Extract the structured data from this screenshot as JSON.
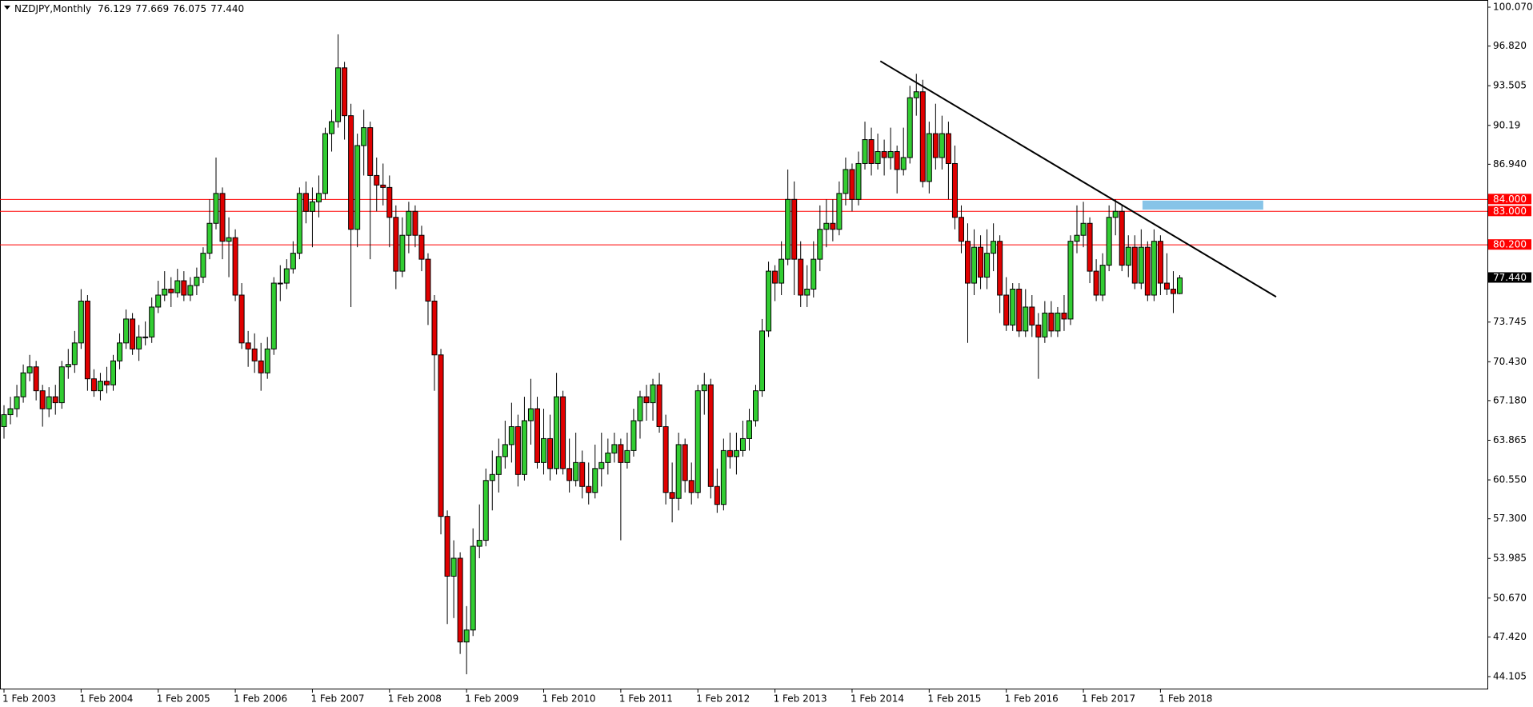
{
  "chart_data": {
    "type": "candlestick",
    "title": "NZDJPY,Monthly",
    "value_labels": {
      "open": "76.129",
      "high": "77.669",
      "low": "76.075",
      "close": "77.440"
    },
    "categories": [
      "1 Feb 2003",
      null,
      null,
      null,
      null,
      null,
      null,
      null,
      null,
      null,
      null,
      null,
      "1 Feb 2004",
      null,
      null,
      null,
      null,
      null,
      null,
      null,
      null,
      null,
      null,
      null,
      "1 Feb 2005",
      null,
      null,
      null,
      null,
      null,
      null,
      null,
      null,
      null,
      null,
      null,
      "1 Feb 2006",
      null,
      null,
      null,
      null,
      null,
      null,
      null,
      null,
      null,
      null,
      null,
      "1 Feb 2007",
      null,
      null,
      null,
      null,
      null,
      null,
      null,
      null,
      null,
      null,
      null,
      "1 Feb 2008",
      null,
      null,
      null,
      null,
      null,
      null,
      null,
      null,
      null,
      null,
      null,
      "1 Feb 2009",
      null,
      null,
      null,
      null,
      null,
      null,
      null,
      null,
      null,
      null,
      null,
      "1 Feb 2010",
      null,
      null,
      null,
      null,
      null,
      null,
      null,
      null,
      null,
      null,
      null,
      "1 Feb 2011",
      null,
      null,
      null,
      null,
      null,
      null,
      null,
      null,
      null,
      null,
      null,
      "1 Feb 2012",
      null,
      null,
      null,
      null,
      null,
      null,
      null,
      null,
      null,
      null,
      null,
      "1 Feb 2013",
      null,
      null,
      null,
      null,
      null,
      null,
      null,
      null,
      null,
      null,
      null,
      "1 Feb 2014",
      null,
      null,
      null,
      null,
      null,
      null,
      null,
      null,
      null,
      null,
      null,
      "1 Feb 2015",
      null,
      null,
      null,
      null,
      null,
      null,
      null,
      null,
      null,
      null,
      null,
      "1 Feb 2016",
      null,
      null,
      null,
      null,
      null,
      null,
      null,
      null,
      null,
      null,
      null,
      "1 Feb 2017",
      null,
      null,
      null,
      null,
      null,
      null,
      null,
      null,
      null,
      null,
      null,
      "1 Feb 2018",
      null,
      null,
      null
    ],
    "open": [
      65.0,
      66.0,
      66.5,
      67.5,
      69.5,
      70.0,
      68.0,
      66.5,
      67.5,
      67.0,
      70.0,
      70.2,
      72.0,
      75.5,
      69.0,
      68.0,
      68.8,
      68.5,
      70.5,
      72.0,
      74.0,
      71.5,
      72.5,
      72.5,
      75.0,
      76.0,
      76.5,
      76.2,
      77.2,
      76.0,
      76.8,
      77.5,
      79.5,
      82.0,
      84.5,
      80.5,
      80.8,
      76.0,
      72.0,
      71.5,
      70.5,
      69.5,
      71.5,
      77.0,
      77.0,
      78.2,
      79.5,
      84.5,
      83.0,
      83.8,
      84.5,
      89.5,
      90.5,
      95.0,
      91.0,
      81.5,
      88.5,
      90.0,
      86.0,
      85.2,
      85.0,
      82.5,
      78.0,
      81.0,
      83.0,
      81.0,
      79.0,
      75.5,
      71.0,
      57.5,
      52.5,
      54.0,
      47.0,
      48.0,
      55.0,
      55.5,
      60.5,
      61.0,
      62.5,
      63.5,
      65.0,
      61.0,
      65.5,
      66.5,
      62.0,
      64.0,
      61.5,
      67.5,
      61.5,
      60.5,
      62.0,
      60.0,
      59.5,
      61.5,
      62.0,
      62.8,
      63.5,
      62.0,
      63.0,
      65.5,
      67.5,
      67.0,
      68.5,
      65.0,
      59.5,
      59.0,
      63.5,
      60.5,
      59.5,
      68.0,
      68.5,
      60.0,
      58.5,
      63.0,
      62.5,
      63.0,
      64.0,
      65.5,
      68.0,
      73.0,
      78.0,
      77.0,
      79.0,
      84.0,
      79.0,
      76.0,
      76.5,
      79.0,
      81.5,
      82.0,
      81.5,
      84.5,
      86.5,
      84.0,
      87.0,
      89.0,
      87.0,
      88.0,
      87.5,
      88.0,
      86.5,
      87.5,
      92.5,
      93.0,
      85.5,
      89.5,
      87.5,
      89.5,
      87.0,
      82.5,
      80.5,
      77.0,
      80.0,
      77.5,
      79.5,
      80.5,
      76.0,
      73.5,
      76.5,
      73.0,
      75.0,
      73.5,
      72.5,
      74.5,
      73.0,
      74.5,
      74.0,
      80.5,
      81.0,
      82.0,
      78.0,
      76.0,
      78.5,
      82.5,
      83.0,
      78.5,
      80.0,
      77.0,
      80.0,
      76.0,
      80.5,
      77.0,
      76.5,
      76.129
    ],
    "high": [
      66.8,
      67.5,
      68.5,
      70.2,
      71.0,
      70.5,
      68.5,
      68.3,
      68.5,
      70.5,
      71.5,
      73.0,
      76.5,
      76.0,
      69.8,
      69.5,
      70.0,
      71.0,
      72.8,
      74.8,
      74.5,
      73.5,
      73.8,
      75.8,
      77.2,
      78.0,
      77.5,
      78.2,
      78.0,
      77.5,
      78.3,
      80.0,
      84.0,
      87.5,
      85.0,
      82.5,
      81.5,
      77.0,
      73.0,
      72.8,
      72.0,
      72.5,
      77.5,
      78.5,
      79.0,
      80.5,
      85.0,
      85.5,
      85.0,
      86.0,
      90.0,
      91.5,
      97.8,
      95.5,
      92.0,
      89.5,
      91.5,
      90.5,
      87.5,
      87.0,
      86.0,
      83.5,
      82.5,
      83.8,
      83.5,
      81.8,
      79.5,
      76.0,
      71.5,
      58.0,
      55.5,
      54.5,
      50.0,
      56.5,
      58.5,
      61.5,
      63.0,
      64.0,
      65.5,
      67.0,
      66.0,
      67.5,
      69.0,
      67.5,
      66.5,
      66.0,
      69.5,
      68.0,
      64.0,
      64.5,
      63.0,
      62.0,
      63.5,
      64.5,
      64.0,
      64.5,
      64.0,
      64.5,
      66.5,
      68.0,
      68.5,
      69.0,
      69.5,
      66.0,
      62.0,
      64.5,
      64.0,
      62.0,
      68.5,
      69.5,
      69.0,
      61.5,
      64.0,
      64.5,
      64.5,
      65.5,
      66.5,
      68.5,
      74.0,
      78.8,
      78.5,
      80.5,
      86.5,
      85.5,
      80.5,
      78.5,
      80.5,
      83.5,
      84.0,
      84.0,
      85.5,
      87.5,
      87.0,
      88.0,
      90.5,
      90.0,
      89.5,
      89.0,
      90.0,
      88.5,
      90.0,
      93.5,
      94.5,
      94.0,
      90.5,
      92.0,
      91.0,
      90.5,
      88.5,
      83.5,
      82.0,
      81.5,
      81.0,
      81.5,
      82.0,
      81.0,
      77.5,
      77.0,
      77.0,
      76.5,
      76.0,
      74.5,
      75.5,
      75.5,
      75.0,
      76.0,
      81.0,
      83.5,
      83.8,
      82.5,
      79.0,
      79.5,
      83.5,
      84.0,
      83.5,
      81.0,
      81.0,
      81.5,
      80.5,
      81.5,
      81.0,
      79.5,
      78.0,
      77.669
    ],
    "low": [
      64.0,
      65.2,
      65.8,
      67.0,
      68.8,
      67.2,
      65.0,
      65.8,
      66.0,
      66.5,
      69.0,
      69.5,
      71.5,
      68.0,
      67.5,
      67.2,
      67.8,
      68.0,
      69.8,
      71.5,
      71.0,
      70.5,
      71.8,
      72.0,
      74.5,
      75.5,
      75.0,
      75.8,
      75.5,
      75.5,
      76.0,
      77.0,
      79.0,
      81.5,
      79.0,
      77.5,
      75.5,
      71.5,
      70.0,
      69.5,
      68.0,
      69.0,
      71.0,
      75.5,
      76.5,
      77.8,
      79.0,
      82.0,
      80.0,
      82.5,
      84.0,
      88.0,
      90.0,
      89.0,
      75.0,
      80.0,
      86.0,
      79.0,
      83.0,
      83.5,
      80.0,
      76.5,
      77.5,
      79.5,
      80.0,
      78.0,
      73.5,
      68.0,
      56.0,
      48.5,
      49.0,
      46.0,
      44.3,
      47.5,
      54.0,
      55.0,
      58.0,
      59.5,
      61.5,
      62.0,
      60.0,
      60.5,
      63.5,
      61.5,
      61.0,
      60.5,
      61.0,
      61.0,
      59.5,
      60.0,
      59.0,
      58.5,
      59.0,
      60.0,
      61.0,
      62.0,
      55.5,
      61.5,
      62.5,
      64.0,
      65.5,
      65.5,
      64.5,
      58.5,
      57.0,
      58.0,
      59.5,
      58.5,
      59.0,
      66.0,
      59.0,
      57.8,
      58.0,
      61.5,
      61.0,
      62.5,
      63.0,
      65.0,
      67.5,
      72.5,
      75.5,
      76.0,
      78.5,
      76.0,
      75.0,
      75.0,
      75.8,
      78.0,
      80.0,
      80.5,
      81.0,
      83.5,
      83.0,
      83.5,
      86.5,
      86.0,
      86.5,
      86.0,
      86.5,
      84.5,
      86.0,
      87.0,
      91.0,
      85.0,
      84.5,
      86.5,
      86.5,
      84.0,
      81.5,
      79.5,
      72.0,
      76.0,
      76.5,
      76.5,
      78.0,
      74.5,
      73.0,
      73.0,
      72.5,
      72.5,
      72.5,
      69.0,
      72.0,
      72.5,
      72.5,
      73.0,
      73.5,
      79.5,
      80.0,
      77.0,
      75.5,
      75.5,
      78.0,
      81.0,
      78.0,
      77.5,
      76.5,
      76.5,
      75.5,
      75.5,
      76.0,
      76.0,
      74.5,
      76.075
    ],
    "close": [
      66.0,
      66.5,
      67.5,
      69.5,
      70.0,
      68.0,
      66.5,
      67.5,
      67.0,
      70.0,
      70.2,
      72.0,
      75.5,
      69.0,
      68.0,
      68.8,
      68.5,
      70.5,
      72.0,
      74.0,
      71.5,
      72.5,
      72.5,
      75.0,
      76.0,
      76.5,
      76.2,
      77.2,
      76.0,
      76.8,
      77.5,
      79.5,
      82.0,
      84.5,
      80.5,
      80.8,
      76.0,
      72.0,
      71.5,
      70.5,
      69.5,
      71.5,
      77.0,
      77.0,
      78.2,
      79.5,
      84.5,
      83.0,
      83.8,
      84.5,
      89.5,
      90.5,
      95.0,
      91.0,
      81.5,
      88.5,
      90.0,
      86.0,
      85.2,
      85.0,
      82.5,
      78.0,
      81.0,
      83.0,
      81.0,
      79.0,
      75.5,
      71.0,
      57.5,
      52.5,
      54.0,
      47.0,
      48.0,
      55.0,
      55.5,
      60.5,
      61.0,
      62.5,
      63.5,
      65.0,
      61.0,
      65.5,
      66.5,
      62.0,
      64.0,
      61.5,
      67.5,
      61.5,
      60.5,
      62.0,
      60.0,
      59.5,
      61.5,
      62.0,
      62.8,
      63.5,
      62.0,
      63.0,
      65.5,
      67.5,
      67.0,
      68.5,
      65.0,
      59.5,
      59.0,
      63.5,
      60.5,
      59.5,
      68.0,
      68.5,
      60.0,
      58.5,
      63.0,
      62.5,
      63.0,
      64.0,
      65.5,
      68.0,
      73.0,
      78.0,
      77.0,
      79.0,
      84.0,
      79.0,
      76.0,
      76.5,
      79.0,
      81.5,
      82.0,
      81.5,
      84.5,
      86.5,
      84.0,
      87.0,
      89.0,
      87.0,
      88.0,
      87.5,
      88.0,
      86.5,
      87.5,
      92.5,
      93.0,
      85.5,
      89.5,
      87.5,
      89.5,
      87.0,
      82.5,
      80.5,
      77.0,
      80.0,
      77.5,
      79.5,
      80.5,
      76.0,
      73.5,
      76.5,
      73.0,
      75.0,
      73.5,
      72.5,
      74.5,
      73.0,
      74.5,
      74.0,
      80.5,
      81.0,
      82.0,
      78.0,
      76.0,
      78.5,
      82.5,
      83.0,
      78.5,
      80.0,
      77.0,
      80.0,
      76.0,
      80.5,
      77.0,
      76.5,
      76.129,
      77.44
    ],
    "colors": {
      "up": "#32cd32",
      "down": "#e00000",
      "outline": "#000000"
    },
    "ylim": [
      44.105,
      100.07
    ],
    "yticks": [
      {
        "value": 100.07,
        "label": "100.070"
      },
      {
        "value": 96.82,
        "label": "96.820"
      },
      93.505,
      90.19,
      {
        "value": 86.94,
        "label": "86.940"
      },
      73.745,
      {
        "value": 70.43,
        "label": "70.430"
      },
      {
        "value": 67.18,
        "label": "67.180"
      },
      63.865,
      {
        "value": 60.55,
        "label": "60.550"
      },
      {
        "value": 57.3,
        "label": "57.300"
      },
      53.985,
      {
        "value": 50.67,
        "label": "50.670"
      },
      {
        "value": 47.42,
        "label": "47.420"
      },
      44.105
    ],
    "levels": [
      {
        "value": 84,
        "label": "84.000"
      },
      {
        "value": 83,
        "label": "83.000"
      },
      {
        "value": 80.2,
        "label": "80.200"
      }
    ],
    "level_color": "#ff0000",
    "trendline": {
      "x": [
        136.4,
        198
      ],
      "y": [
        95.56,
        75.86
      ],
      "color": "#000000"
    },
    "zone": {
      "x": [
        177.2,
        196
      ],
      "y": [
        83.15,
        83.9
      ],
      "color": "#87c4e8"
    }
  }
}
